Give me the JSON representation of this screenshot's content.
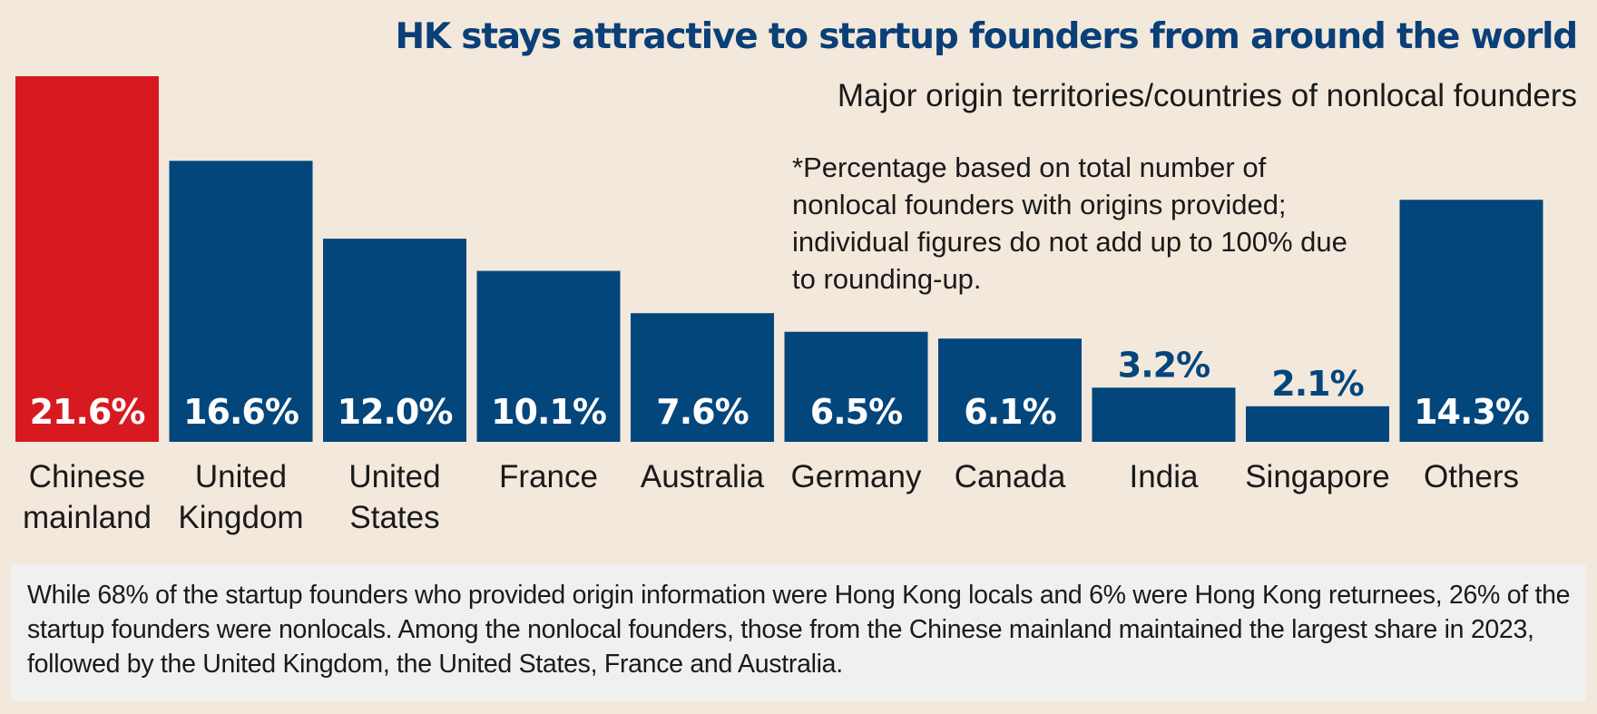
{
  "title": "HK stays attractive to startup founders from around the world",
  "subtitle": "Major origin territories/countries of nonlocal founders",
  "note": "*Percentage based on total number of nonlocal founders with origins provided; individual figures do not add up to 100% due to rounding-up.",
  "footer": "While 68% of the startup founders who provided origin information were Hong Kong locals and 6% were Hong Kong returnees, 26% of the startup founders were nonlocals. Among the nonlocal founders, those from the Chinese mainland maintained the largest share in 2023, followed by the United Kingdom, the United States, France and Australia.",
  "colors": {
    "highlight": "#d71920",
    "bar": "#03467c",
    "title": "#0a3f78",
    "background": "#f2e8db",
    "footer_bg": "#f0f0f0"
  },
  "chart_data": {
    "type": "bar",
    "categories": [
      [
        "Chinese",
        "mainland"
      ],
      [
        "United",
        "Kingdom"
      ],
      [
        "United",
        "States"
      ],
      [
        "France"
      ],
      [
        "Australia"
      ],
      [
        "Germany"
      ],
      [
        "Canada"
      ],
      [
        "India"
      ],
      [
        "Singapore"
      ],
      [
        "Others"
      ]
    ],
    "values": [
      21.6,
      16.6,
      12.0,
      10.1,
      7.6,
      6.5,
      6.1,
      3.2,
      2.1,
      14.3
    ],
    "value_labels": [
      "21.6%",
      "16.6%",
      "12.0%",
      "10.1%",
      "7.6%",
      "6.5%",
      "6.1%",
      "3.2%",
      "2.1%",
      "14.3%"
    ],
    "highlight_index": 0,
    "ylim": [
      0,
      21.6
    ],
    "grid": false,
    "legend": "none"
  }
}
